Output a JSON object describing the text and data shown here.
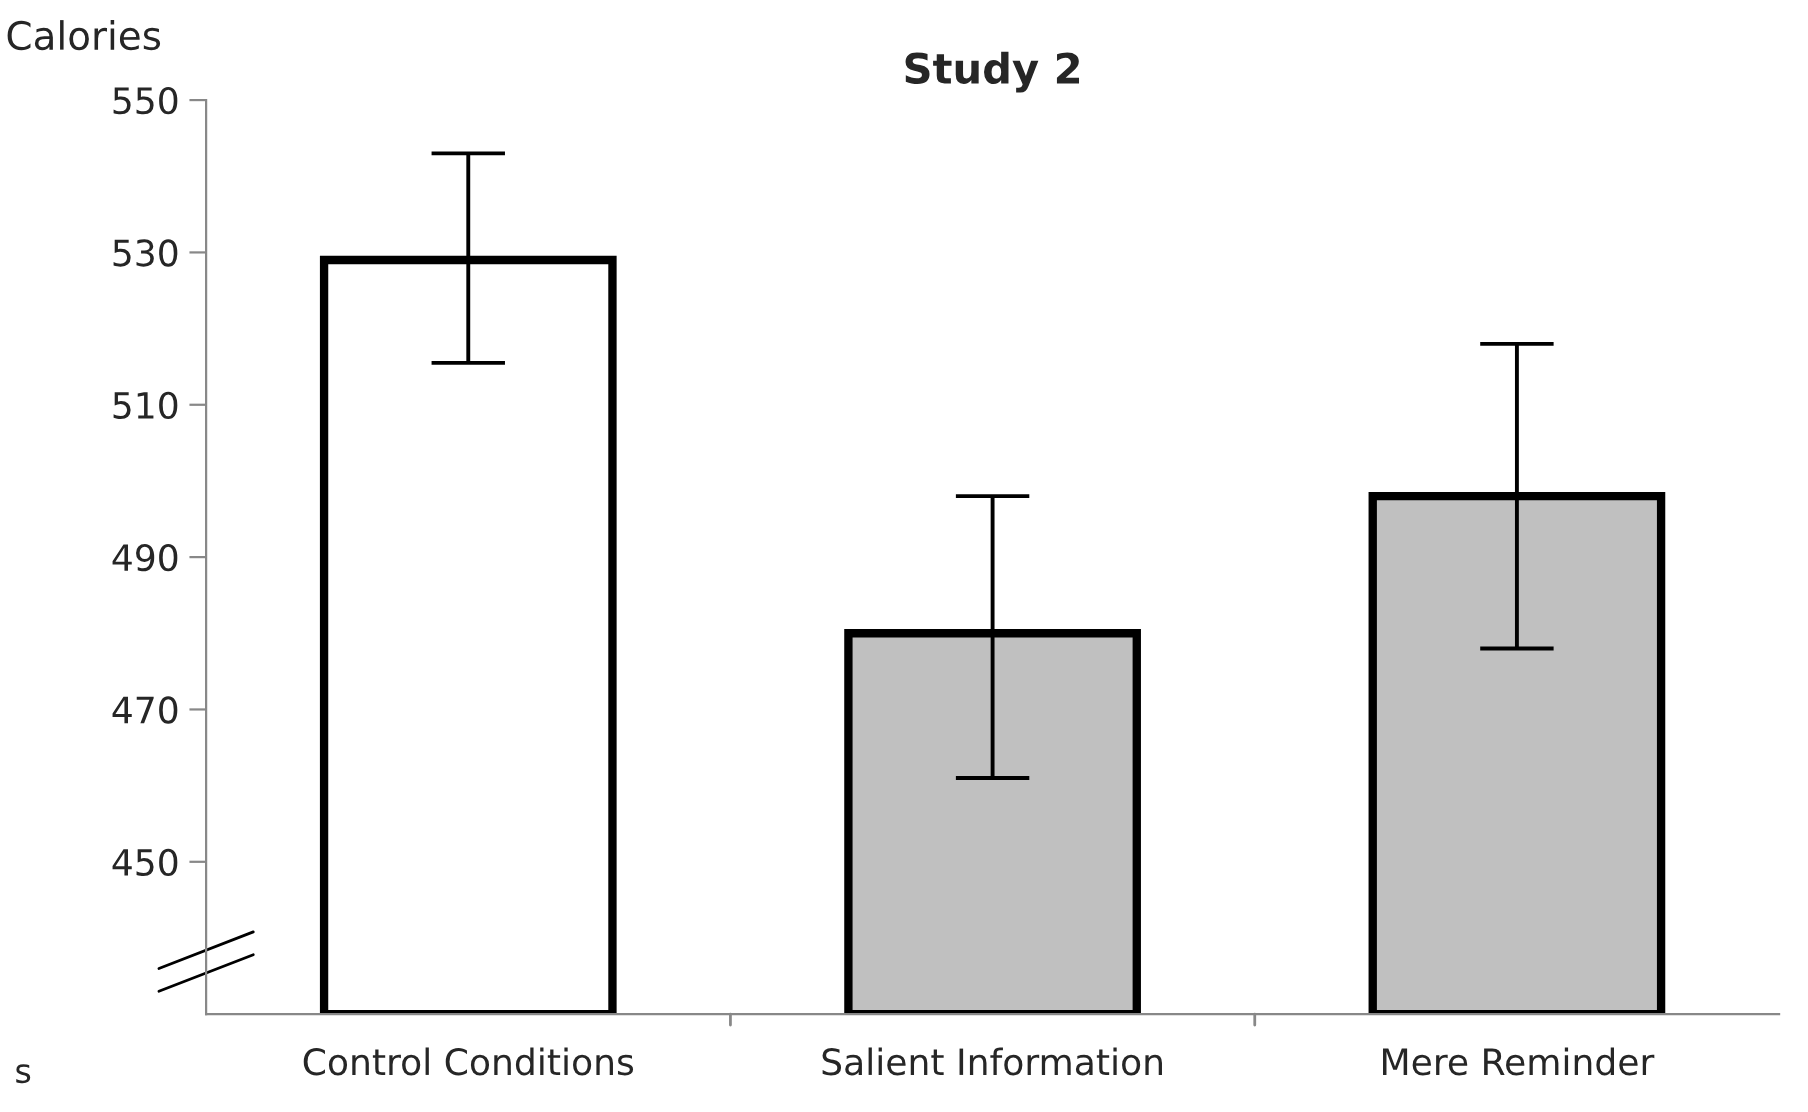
{
  "chart_data": {
    "type": "bar",
    "title": "Study 2",
    "ylabel": "Calories",
    "categories": [
      "Control Conditions",
      "Salient Information",
      "Mere Reminder"
    ],
    "values": [
      529,
      480,
      498
    ],
    "colors": [
      "#ffffff",
      "#c0c0c0",
      "#c0c0c0"
    ],
    "errors": [
      [
        515.5,
        543
      ],
      [
        461,
        498
      ],
      [
        478,
        518
      ]
    ],
    "ylim": [
      430,
      550
    ],
    "yticks": [
      450,
      470,
      490,
      510,
      530,
      550
    ],
    "grid": false,
    "legend": false,
    "annotations": [
      "s"
    ]
  }
}
